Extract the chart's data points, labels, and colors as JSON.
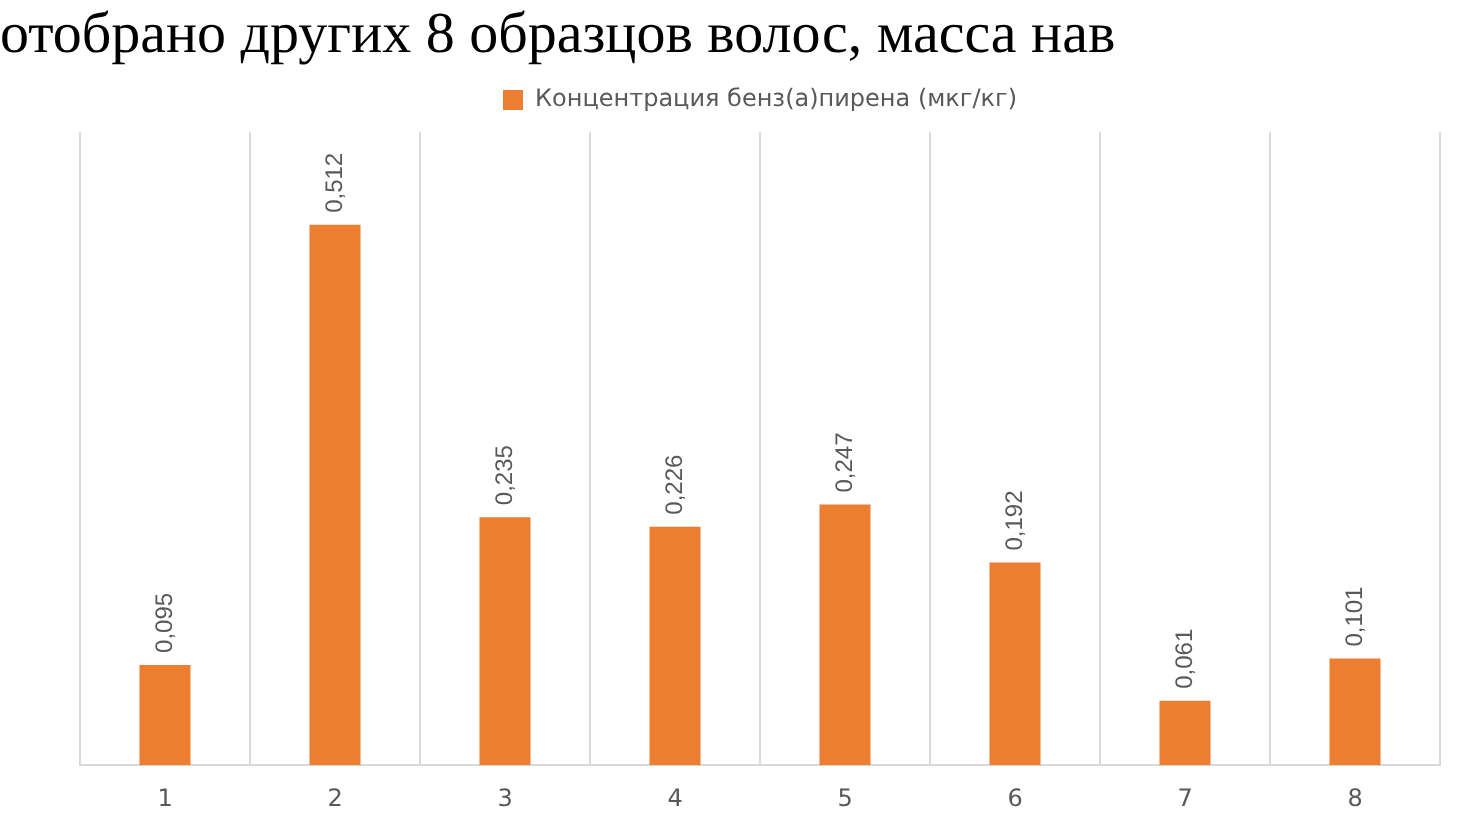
{
  "chart_data": {
    "type": "bar",
    "annotations": [
      "отобрано других 8 образцов волос, масса нав"
    ],
    "categories": [
      "1",
      "2",
      "3",
      "4",
      "5",
      "6",
      "7",
      "8"
    ],
    "series": [
      {
        "name": "Концентрация бенз(а)пирена (мкг/кг)",
        "color": "#ed7d31",
        "values": [
          0.095,
          0.512,
          0.235,
          0.226,
          0.247,
          0.192,
          0.061,
          0.101
        ],
        "value_labels": [
          "0,095",
          "0,512",
          "0,235",
          "0,226",
          "0,247",
          "0,192",
          "0,061",
          "0,101"
        ]
      }
    ],
    "grid": "x",
    "legend": "top"
  }
}
